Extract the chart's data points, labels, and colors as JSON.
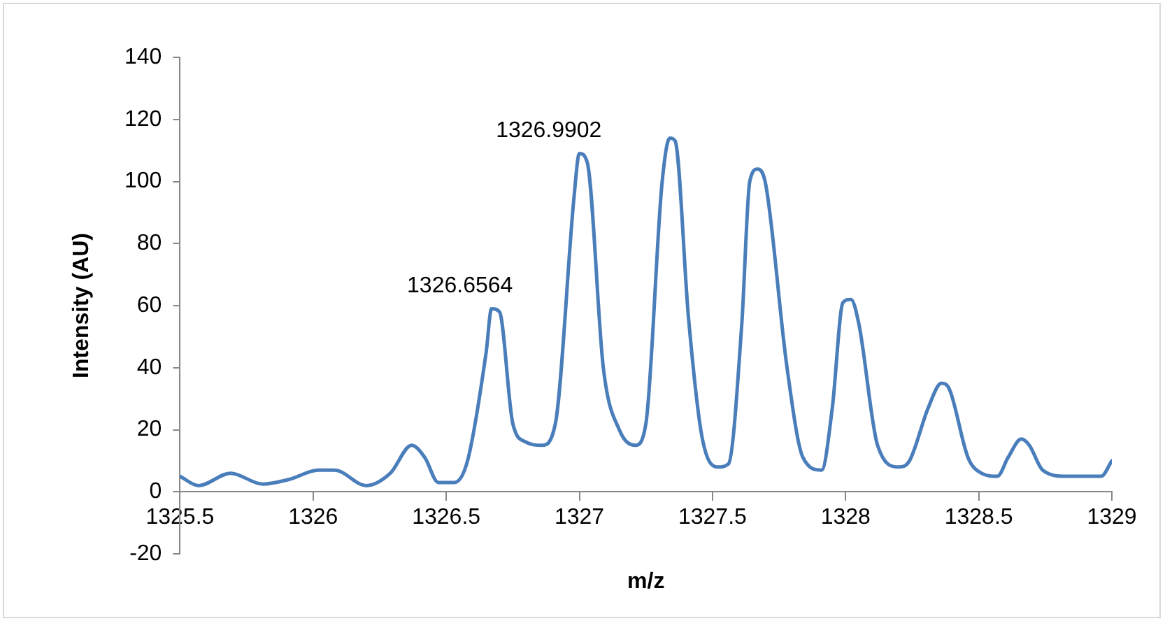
{
  "chart_data": {
    "type": "line",
    "xlabel": "m/z",
    "ylabel": "Intensity (AU)",
    "xlim": [
      1325.5,
      1329
    ],
    "xticks": [
      1325.5,
      1326,
      1326.5,
      1327,
      1327.5,
      1328,
      1328.5,
      1329
    ],
    "ylim": [
      -20,
      140
    ],
    "yticks": [
      -20,
      0,
      20,
      40,
      60,
      80,
      100,
      120,
      140
    ],
    "grid": false,
    "legend": false,
    "marker": "none",
    "line_style": "solid",
    "annotations": [
      {
        "text": "1326.6564",
        "x": 1326.6564,
        "y": 59
      },
      {
        "text": "1326.9902",
        "x": 1326.9902,
        "y": 109
      }
    ],
    "series": [
      {
        "color": "#4a7ebb",
        "x": [
          1325.5,
          1325.57,
          1325.69,
          1325.81,
          1325.91,
          1326.02,
          1326.08,
          1326.2,
          1326.29,
          1326.37,
          1326.42,
          1326.47,
          1326.53,
          1326.58,
          1326.65,
          1326.67,
          1326.7,
          1326.75,
          1326.8,
          1326.86,
          1326.91,
          1326.98,
          1327,
          1327.03,
          1327.09,
          1327.15,
          1327.21,
          1327.25,
          1327.31,
          1327.34,
          1327.36,
          1327.41,
          1327.46,
          1327.52,
          1327.56,
          1327.61,
          1327.64,
          1327.67,
          1327.7,
          1327.78,
          1327.84,
          1327.91,
          1327.95,
          1327.99,
          1328.02,
          1328.05,
          1328.12,
          1328.2,
          1328.24,
          1328.31,
          1328.36,
          1328.39,
          1328.46,
          1328.51,
          1328.57,
          1328.61,
          1328.66,
          1328.69,
          1328.74,
          1328.83,
          1328.93,
          1328.96,
          1329
        ],
        "values": [
          5,
          2,
          6,
          2.5,
          4,
          7,
          7,
          2,
          6,
          15,
          11,
          3,
          3,
          10,
          45,
          59,
          58,
          22,
          16,
          15,
          22,
          95,
          109,
          106,
          40,
          20,
          15,
          22,
          99,
          114,
          113,
          56,
          18,
          8,
          9,
          54,
          100,
          104,
          99,
          40,
          11,
          7,
          27,
          61,
          62,
          54,
          15,
          8,
          10,
          27,
          35,
          33,
          11,
          6,
          5,
          11,
          17,
          15,
          7,
          5,
          5,
          5,
          10
        ]
      }
    ]
  }
}
